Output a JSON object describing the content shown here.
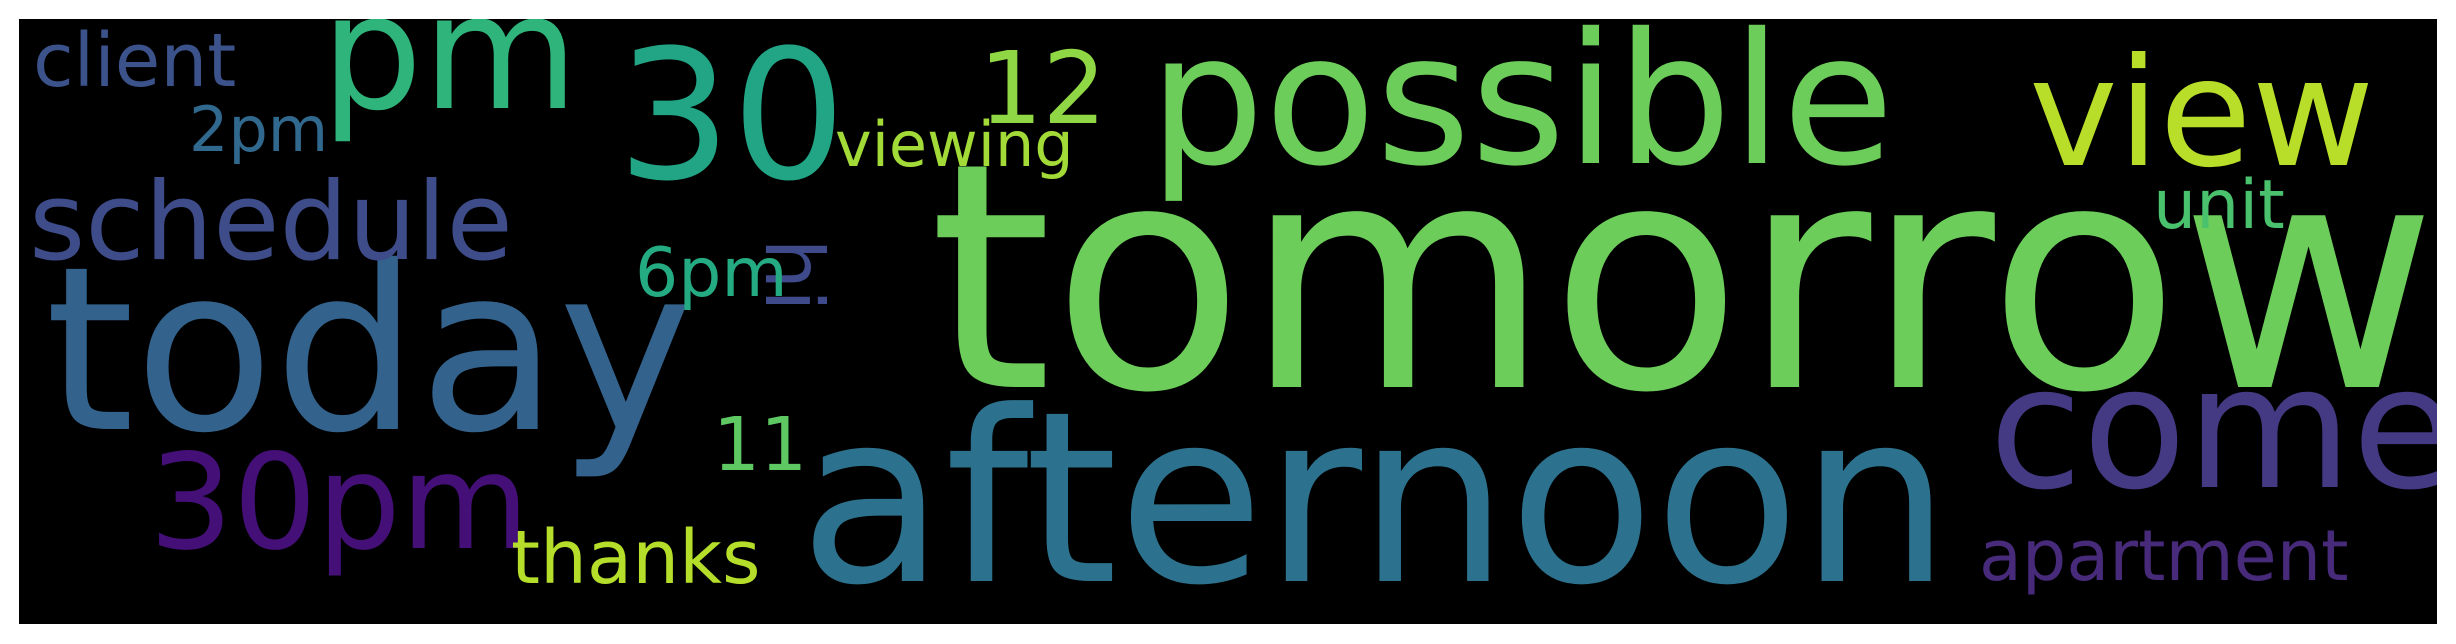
{
  "words": [
    {
      "text": "tomorrow",
      "color": "#6ccd5a"
    },
    {
      "text": "afternoon",
      "color": "#2c728e"
    },
    {
      "text": "today",
      "color": "#33638d"
    },
    {
      "text": "possible",
      "color": "#6ccd5a"
    },
    {
      "text": "come",
      "color": "#443983"
    },
    {
      "text": "view",
      "color": "#b8de29"
    },
    {
      "text": "30",
      "color": "#21a585"
    },
    {
      "text": "pm",
      "color": "#2fb47c"
    },
    {
      "text": "30pm",
      "color": "#440f76"
    },
    {
      "text": "schedule",
      "color": "#3e4c8a"
    },
    {
      "text": "apartment",
      "color": "#472a7a"
    },
    {
      "text": "12",
      "color": "#8fd744"
    },
    {
      "text": "client",
      "color": "#3b528b"
    },
    {
      "text": "thanks",
      "color": "#b5de2b"
    },
    {
      "text": "viewing",
      "color": "#a2da37"
    },
    {
      "text": "hi",
      "color": "#3e4a89"
    },
    {
      "text": "6pm",
      "color": "#25ab82"
    },
    {
      "text": "unit",
      "color": "#4ac16d"
    },
    {
      "text": "11",
      "color": "#5ec962"
    },
    {
      "text": "2pm",
      "color": "#31688e"
    }
  ]
}
